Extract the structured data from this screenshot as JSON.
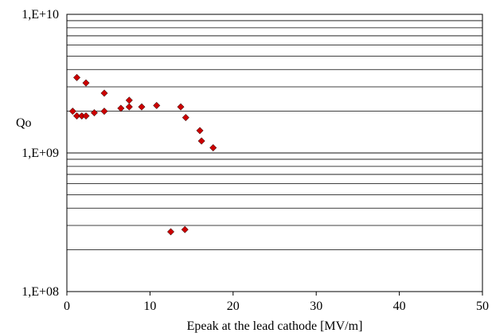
{
  "chart_data": {
    "type": "scatter",
    "title": "",
    "xlabel": "Epeak at the lead cathode [MV/m]",
    "ylabel": "Qo",
    "x_range": [
      0,
      50
    ],
    "y_range": [
      100000000,
      10000000000
    ],
    "y_scale": "log",
    "x_ticks": [
      {
        "value": 0,
        "label": "0"
      },
      {
        "value": 10,
        "label": "10"
      },
      {
        "value": 20,
        "label": "20"
      },
      {
        "value": 30,
        "label": "30"
      },
      {
        "value": 40,
        "label": "40"
      },
      {
        "value": 50,
        "label": "50"
      }
    ],
    "y_ticks": [
      {
        "value": 100000000,
        "label": "1,E+08"
      },
      {
        "value": 1000000000,
        "label": "1,E+09"
      },
      {
        "value": 10000000000,
        "label": "1,E+10"
      }
    ],
    "grid": "horizontal major and minor",
    "legend": "none",
    "marker_color": "#cc0000",
    "points": [
      {
        "x": 0.7,
        "y": 2000000000
      },
      {
        "x": 1.2,
        "y": 1850000000
      },
      {
        "x": 1.2,
        "y": 3500000000
      },
      {
        "x": 1.8,
        "y": 1850000000
      },
      {
        "x": 2.3,
        "y": 1850000000
      },
      {
        "x": 2.3,
        "y": 3200000000
      },
      {
        "x": 3.3,
        "y": 1950000000
      },
      {
        "x": 4.5,
        "y": 2000000000
      },
      {
        "x": 4.5,
        "y": 2700000000
      },
      {
        "x": 6.5,
        "y": 2100000000
      },
      {
        "x": 7.5,
        "y": 2150000000
      },
      {
        "x": 7.5,
        "y": 2400000000
      },
      {
        "x": 9.0,
        "y": 2150000000
      },
      {
        "x": 10.8,
        "y": 2200000000
      },
      {
        "x": 13.7,
        "y": 2150000000
      },
      {
        "x": 14.3,
        "y": 1800000000
      },
      {
        "x": 16.0,
        "y": 1450000000
      },
      {
        "x": 16.2,
        "y": 1220000000
      },
      {
        "x": 17.6,
        "y": 1090000000
      },
      {
        "x": 12.5,
        "y": 270000000
      },
      {
        "x": 14.2,
        "y": 280000000
      }
    ]
  }
}
